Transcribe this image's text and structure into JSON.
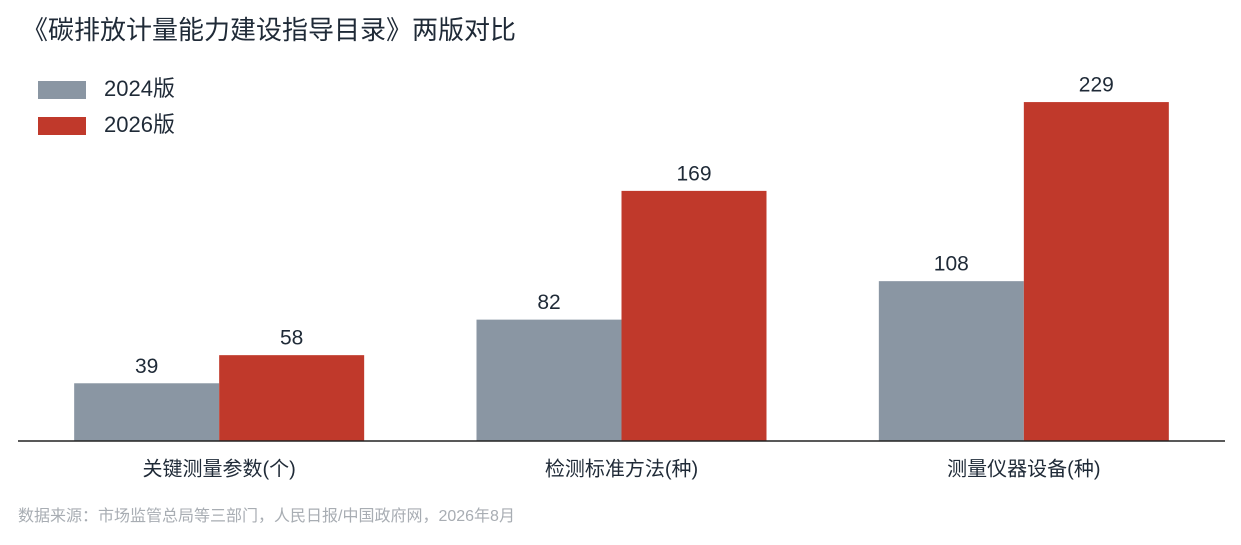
{
  "chart_data": {
    "type": "bar",
    "title": "《碳排放计量能力建设指导目录》两版对比",
    "categories": [
      "关键测量参数(个)",
      "检测标准方法(种)",
      "测量仪器设备(种)"
    ],
    "series": [
      {
        "name": "2024版",
        "color": "#8a96a3",
        "values": [
          39,
          82,
          108
        ]
      },
      {
        "name": "2026版",
        "color": "#c0392b",
        "values": [
          58,
          169,
          229
        ]
      }
    ],
    "ylim": [
      0,
      250
    ],
    "source": "数据来源：市场监管总局等三部门，人民日报/中国政府网，2026年8月"
  }
}
